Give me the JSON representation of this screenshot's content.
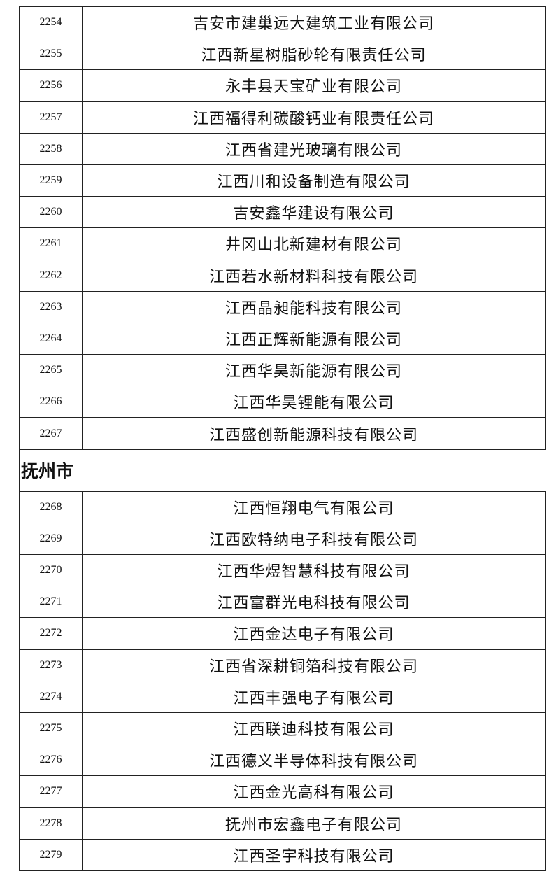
{
  "sections": [
    {
      "rows": [
        [
          "2254",
          "吉安市建巢远大建筑工业有限公司"
        ],
        [
          "2255",
          "江西新星树脂砂轮有限责任公司"
        ],
        [
          "2256",
          "永丰县天宝矿业有限公司"
        ],
        [
          "2257",
          "江西福得利碳酸钙业有限责任公司"
        ],
        [
          "2258",
          "江西省建光玻璃有限公司"
        ],
        [
          "2259",
          "江西川和设备制造有限公司"
        ],
        [
          "2260",
          "吉安鑫华建设有限公司"
        ],
        [
          "2261",
          "井冈山北新建材有限公司"
        ],
        [
          "2262",
          "江西若水新材料科技有限公司"
        ],
        [
          "2263",
          "江西晶昶能科技有限公司"
        ],
        [
          "2264",
          "江西正辉新能源有限公司"
        ],
        [
          "2265",
          "江西华昊新能源有限公司"
        ],
        [
          "2266",
          "江西华昊锂能有限公司"
        ],
        [
          "2267",
          "江西盛创新能源科技有限公司"
        ]
      ]
    },
    {
      "title": "抚州市",
      "rows": [
        [
          "2268",
          "江西恒翔电气有限公司"
        ],
        [
          "2269",
          "江西欧特纳电子科技有限公司"
        ],
        [
          "2270",
          "江西华煜智慧科技有限公司"
        ],
        [
          "2271",
          "江西富群光电科技有限公司"
        ],
        [
          "2272",
          "江西金达电子有限公司"
        ],
        [
          "2273",
          "江西省深耕铜箔科技有限公司"
        ],
        [
          "2274",
          "江西丰强电子有限公司"
        ],
        [
          "2275",
          "江西联迪科技有限公司"
        ],
        [
          "2276",
          "江西德义半导体科技有限公司"
        ],
        [
          "2277",
          "江西金光高科有限公司"
        ],
        [
          "2278",
          "抚州市宏鑫电子有限公司"
        ],
        [
          "2279",
          "江西圣宇科技有限公司"
        ]
      ]
    }
  ]
}
